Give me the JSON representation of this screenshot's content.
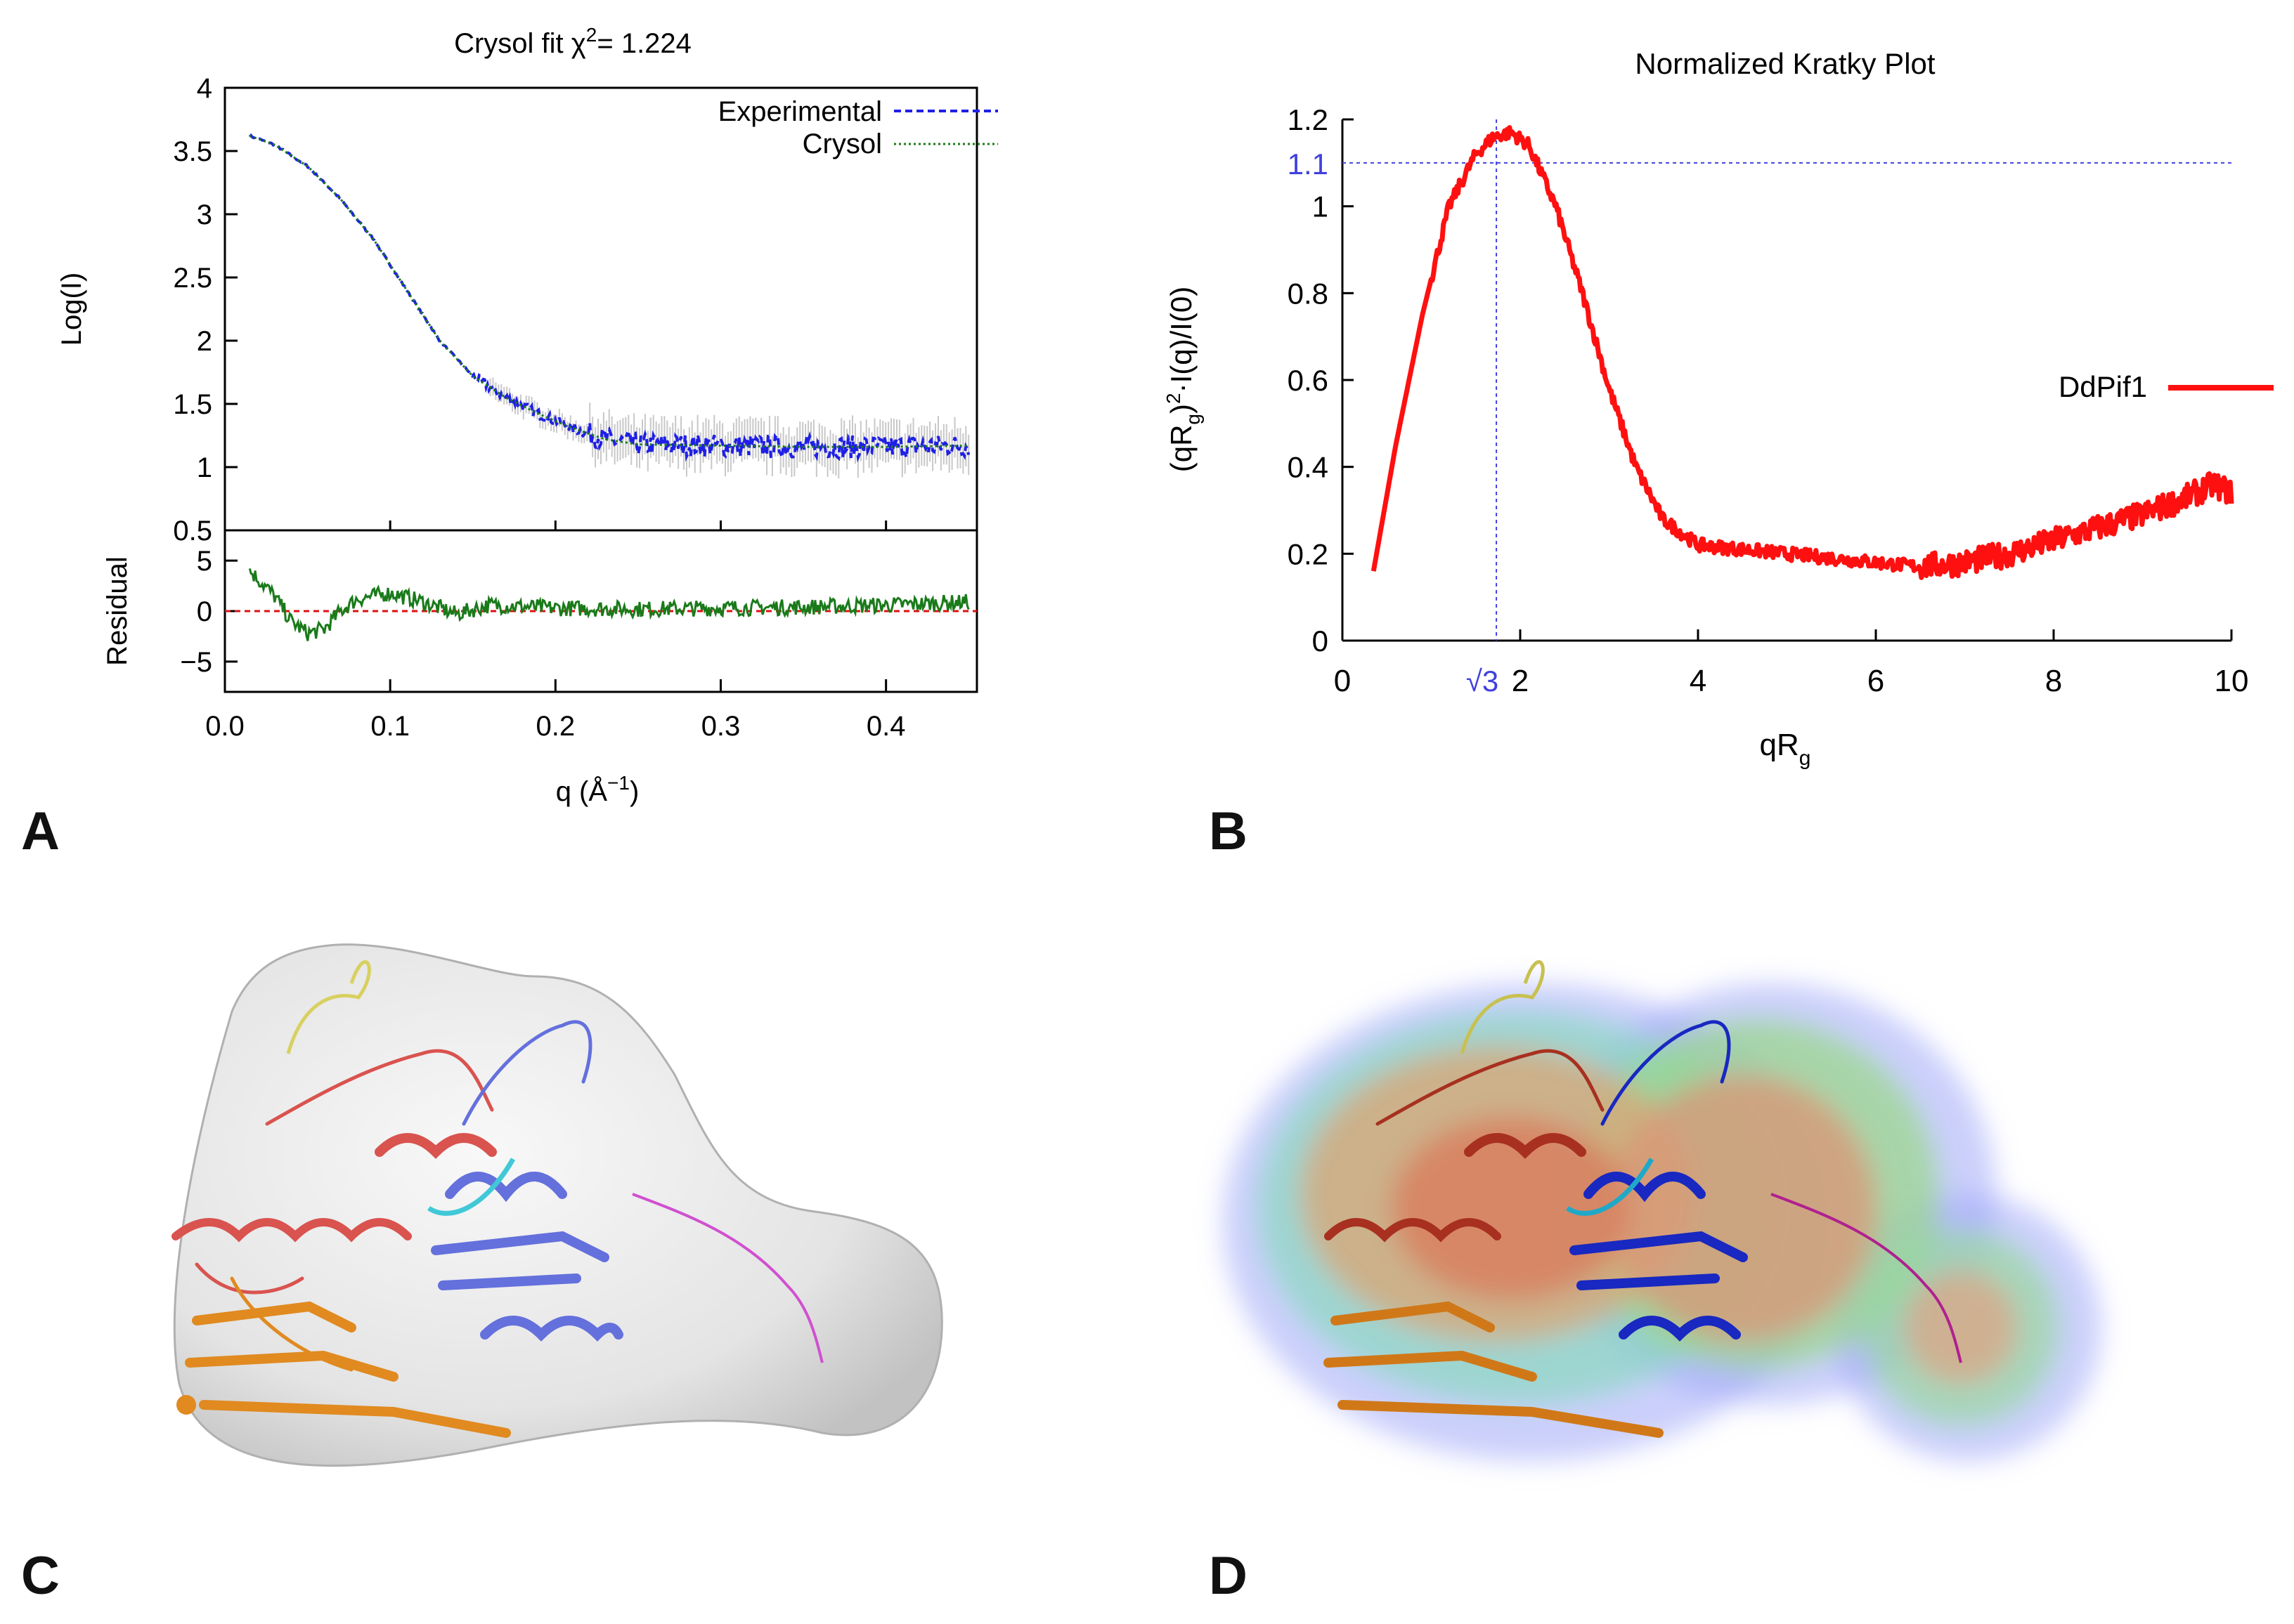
{
  "panels": {
    "a": {
      "letter": "A"
    },
    "b": {
      "letter": "B"
    },
    "c": {
      "letter": "C",
      "caption": "3D molecular model of DdPif1 docked in grey SAXS envelope"
    },
    "d": {
      "letter": "D",
      "caption": "3D molecular model of DdPif1 in colored density map"
    }
  },
  "colors": {
    "experimental": "#1f1fe6",
    "crysol": "#1a7a1a",
    "error_bars": "#c8c8c8",
    "residual_zero": "#e01010",
    "kratky": "#ff1010",
    "guide": "#4040e0",
    "axis": "#000000"
  },
  "chart_data": [
    {
      "id": "panel-a-top",
      "type": "line",
      "title": "Crysol fit  χ",
      "title_sup": "2",
      "title_suffix": "= 1.224",
      "xlabel": "q (Å",
      "xlabel_sup": "−1",
      "xlabel_suffix": ")",
      "ylabel": "Log(I)",
      "xlim": [
        0.0,
        0.455
      ],
      "ylim": [
        0.5,
        4.0
      ],
      "xticks": [
        0.0,
        0.1,
        0.2,
        0.3,
        0.4
      ],
      "xtick_labels": [
        "0.0",
        "0.1",
        "0.2",
        "0.3",
        "0.4"
      ],
      "yticks": [
        0.5,
        1.0,
        1.5,
        2.0,
        2.5,
        3.0,
        3.5,
        4.0
      ],
      "ytick_labels": [
        "0.5",
        "1",
        "1.5",
        "2",
        "2.5",
        "3",
        "3.5",
        "4"
      ],
      "legend_position": "top-right",
      "series": [
        {
          "name": "Experimental",
          "style": "dashed",
          "x": [
            0.015,
            0.03,
            0.05,
            0.07,
            0.09,
            0.11,
            0.13,
            0.15,
            0.17,
            0.19,
            0.21,
            0.23,
            0.25,
            0.3,
            0.35,
            0.4,
            0.45
          ],
          "y": [
            3.62,
            3.55,
            3.38,
            3.12,
            2.8,
            2.4,
            2.0,
            1.72,
            1.55,
            1.42,
            1.31,
            1.22,
            1.18,
            1.17,
            1.16,
            1.16,
            1.17
          ]
        },
        {
          "name": "Crysol",
          "style": "dotted",
          "x": [
            0.015,
            0.03,
            0.05,
            0.07,
            0.09,
            0.11,
            0.13,
            0.15,
            0.17,
            0.19,
            0.21,
            0.23,
            0.25,
            0.3,
            0.35,
            0.4,
            0.45
          ],
          "y": [
            3.62,
            3.55,
            3.38,
            3.12,
            2.8,
            2.4,
            2.0,
            1.72,
            1.55,
            1.42,
            1.31,
            1.22,
            1.18,
            1.17,
            1.16,
            1.16,
            1.17
          ]
        }
      ]
    },
    {
      "id": "panel-a-residual",
      "type": "line",
      "ylabel": "Residual",
      "xlim": [
        0.0,
        0.455
      ],
      "ylim": [
        -8,
        8
      ],
      "yticks": [
        -5,
        0,
        5
      ],
      "ytick_labels": [
        "−5",
        "0",
        "5"
      ],
      "series": [
        {
          "name": "Residual",
          "x": [
            0.015,
            0.02,
            0.03,
            0.04,
            0.05,
            0.06,
            0.07,
            0.08,
            0.1,
            0.12,
            0.14,
            0.16,
            0.2,
            0.25,
            0.3,
            0.35,
            0.4,
            0.45
          ],
          "y": [
            4.0,
            3.2,
            1.5,
            -1.0,
            -2.2,
            -1.8,
            0.0,
            1.2,
            1.8,
            0.9,
            -0.3,
            0.6,
            0.3,
            0.2,
            0.3,
            0.4,
            0.6,
            0.9
          ]
        }
      ]
    },
    {
      "id": "panel-b",
      "type": "line",
      "title": "Normalized Kratky Plot",
      "xlabel": "qR",
      "xlabel_sub": "g",
      "ylabel": "(qR",
      "ylabel_sub": "g",
      "ylabel_mid": ")",
      "ylabel_sup": "2",
      "ylabel_suffix": "·I(q)/I(0)",
      "xlim": [
        0,
        10
      ],
      "ylim": [
        0,
        1.2
      ],
      "xticks": [
        0,
        2,
        4,
        6,
        8,
        10
      ],
      "xtick_labels": [
        "0",
        "2",
        "4",
        "6",
        "8",
        "10"
      ],
      "yticks": [
        0,
        0.2,
        0.4,
        0.6,
        0.8,
        1.0,
        1.2
      ],
      "ytick_labels": [
        "0",
        "0.2",
        "0.4",
        "0.6",
        "0.8",
        "1",
        "1.2"
      ],
      "guide_lines": {
        "x": 1.732,
        "x_label": "√3",
        "y": 1.1,
        "y_label": "1.1"
      },
      "legend_position": "right",
      "series": [
        {
          "name": "DdPif1",
          "x": [
            0.35,
            0.6,
            0.9,
            1.2,
            1.5,
            1.7,
            1.9,
            2.1,
            2.4,
            2.7,
            3.0,
            3.3,
            3.6,
            4.0,
            4.5,
            5.0,
            5.5,
            6.0,
            6.5,
            7.0,
            7.5,
            8.0,
            8.5,
            9.0,
            9.5,
            9.8,
            10.0
          ],
          "y": [
            0.16,
            0.45,
            0.75,
            1.0,
            1.12,
            1.16,
            1.17,
            1.14,
            1.0,
            0.8,
            0.58,
            0.4,
            0.28,
            0.22,
            0.21,
            0.2,
            0.19,
            0.18,
            0.17,
            0.18,
            0.2,
            0.23,
            0.26,
            0.29,
            0.33,
            0.36,
            0.34
          ]
        }
      ]
    }
  ]
}
